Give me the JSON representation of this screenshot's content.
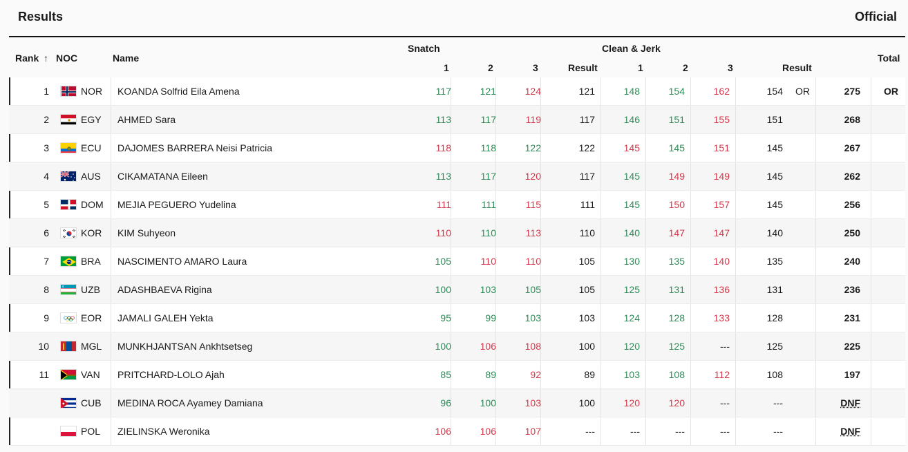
{
  "header": {
    "title": "Results",
    "status": "Official"
  },
  "columns": {
    "rank": "Rank",
    "sort_icon": "↑",
    "noc": "NOC",
    "name": "Name",
    "snatch": "Snatch",
    "cj": "Clean & Jerk",
    "a1": "1",
    "a2": "2",
    "a3": "3",
    "result": "Result",
    "total": "Total"
  },
  "colors": {
    "good": "#2e8b57",
    "bad": "#d2384b"
  },
  "rows": [
    {
      "rank": "1",
      "noc": "NOR",
      "flag": "flag-nor",
      "name": "KOANDA Solfrid Eila Amena",
      "s": [
        [
          "117",
          "good"
        ],
        [
          "121",
          "good"
        ],
        [
          "124",
          "bad"
        ]
      ],
      "sr": "121",
      "c": [
        [
          "148",
          "good"
        ],
        [
          "154",
          "good"
        ],
        [
          "162",
          "bad"
        ]
      ],
      "cr": "154",
      "cr_note": "OR",
      "total": "275",
      "total_note": "OR"
    },
    {
      "rank": "2",
      "noc": "EGY",
      "flag": "flag-egy",
      "name": "AHMED Sara",
      "s": [
        [
          "113",
          "good"
        ],
        [
          "117",
          "good"
        ],
        [
          "119",
          "bad"
        ]
      ],
      "sr": "117",
      "c": [
        [
          "146",
          "good"
        ],
        [
          "151",
          "good"
        ],
        [
          "155",
          "bad"
        ]
      ],
      "cr": "151",
      "cr_note": "",
      "total": "268",
      "total_note": ""
    },
    {
      "rank": "3",
      "noc": "ECU",
      "flag": "flag-ecu",
      "name": "DAJOMES BARRERA Neisi Patricia",
      "s": [
        [
          "118",
          "bad"
        ],
        [
          "118",
          "good"
        ],
        [
          "122",
          "good"
        ]
      ],
      "sr": "122",
      "c": [
        [
          "145",
          "bad"
        ],
        [
          "145",
          "good"
        ],
        [
          "151",
          "bad"
        ]
      ],
      "cr": "145",
      "cr_note": "",
      "total": "267",
      "total_note": ""
    },
    {
      "rank": "4",
      "noc": "AUS",
      "flag": "flag-aus",
      "name": "CIKAMATANA Eileen",
      "s": [
        [
          "113",
          "good"
        ],
        [
          "117",
          "good"
        ],
        [
          "120",
          "bad"
        ]
      ],
      "sr": "117",
      "c": [
        [
          "145",
          "good"
        ],
        [
          "149",
          "bad"
        ],
        [
          "149",
          "bad"
        ]
      ],
      "cr": "145",
      "cr_note": "",
      "total": "262",
      "total_note": ""
    },
    {
      "rank": "5",
      "noc": "DOM",
      "flag": "flag-dom",
      "name": "MEJIA PEGUERO Yudelina",
      "s": [
        [
          "111",
          "bad"
        ],
        [
          "111",
          "good"
        ],
        [
          "115",
          "bad"
        ]
      ],
      "sr": "111",
      "c": [
        [
          "145",
          "good"
        ],
        [
          "150",
          "bad"
        ],
        [
          "157",
          "bad"
        ]
      ],
      "cr": "145",
      "cr_note": "",
      "total": "256",
      "total_note": ""
    },
    {
      "rank": "6",
      "noc": "KOR",
      "flag": "flag-kor",
      "name": "KIM Suhyeon",
      "s": [
        [
          "110",
          "bad"
        ],
        [
          "110",
          "good"
        ],
        [
          "113",
          "bad"
        ]
      ],
      "sr": "110",
      "c": [
        [
          "140",
          "good"
        ],
        [
          "147",
          "bad"
        ],
        [
          "147",
          "bad"
        ]
      ],
      "cr": "140",
      "cr_note": "",
      "total": "250",
      "total_note": ""
    },
    {
      "rank": "7",
      "noc": "BRA",
      "flag": "flag-bra",
      "name": "NASCIMENTO AMARO Laura",
      "s": [
        [
          "105",
          "good"
        ],
        [
          "110",
          "bad"
        ],
        [
          "110",
          "bad"
        ]
      ],
      "sr": "105",
      "c": [
        [
          "130",
          "good"
        ],
        [
          "135",
          "good"
        ],
        [
          "140",
          "bad"
        ]
      ],
      "cr": "135",
      "cr_note": "",
      "total": "240",
      "total_note": ""
    },
    {
      "rank": "8",
      "noc": "UZB",
      "flag": "flag-uzb",
      "name": "ADASHBAEVA Rigina",
      "s": [
        [
          "100",
          "good"
        ],
        [
          "103",
          "good"
        ],
        [
          "105",
          "good"
        ]
      ],
      "sr": "105",
      "c": [
        [
          "125",
          "good"
        ],
        [
          "131",
          "good"
        ],
        [
          "136",
          "bad"
        ]
      ],
      "cr": "131",
      "cr_note": "",
      "total": "236",
      "total_note": ""
    },
    {
      "rank": "9",
      "noc": "EOR",
      "flag": "flag-eor",
      "name": "JAMALI GALEH Yekta",
      "s": [
        [
          "95",
          "good"
        ],
        [
          "99",
          "good"
        ],
        [
          "103",
          "good"
        ]
      ],
      "sr": "103",
      "c": [
        [
          "124",
          "good"
        ],
        [
          "128",
          "good"
        ],
        [
          "133",
          "bad"
        ]
      ],
      "cr": "128",
      "cr_note": "",
      "total": "231",
      "total_note": ""
    },
    {
      "rank": "10",
      "noc": "MGL",
      "flag": "flag-mgl",
      "name": "MUNKHJANTSAN Ankhtsetseg",
      "s": [
        [
          "100",
          "good"
        ],
        [
          "106",
          "bad"
        ],
        [
          "108",
          "bad"
        ]
      ],
      "sr": "100",
      "c": [
        [
          "120",
          "good"
        ],
        [
          "125",
          "good"
        ],
        [
          "---",
          "neutral"
        ]
      ],
      "cr": "125",
      "cr_note": "",
      "total": "225",
      "total_note": ""
    },
    {
      "rank": "11",
      "noc": "VAN",
      "flag": "flag-van",
      "name": "PRITCHARD-LOLO Ajah",
      "s": [
        [
          "85",
          "good"
        ],
        [
          "89",
          "good"
        ],
        [
          "92",
          "bad"
        ]
      ],
      "sr": "89",
      "c": [
        [
          "103",
          "good"
        ],
        [
          "108",
          "good"
        ],
        [
          "112",
          "bad"
        ]
      ],
      "cr": "108",
      "cr_note": "",
      "total": "197",
      "total_note": ""
    },
    {
      "rank": "",
      "noc": "CUB",
      "flag": "flag-cub",
      "name": "MEDINA ROCA Ayamey Damiana",
      "s": [
        [
          "96",
          "good"
        ],
        [
          "100",
          "good"
        ],
        [
          "103",
          "bad"
        ]
      ],
      "sr": "100",
      "c": [
        [
          "120",
          "bad"
        ],
        [
          "120",
          "bad"
        ],
        [
          "---",
          "neutral"
        ]
      ],
      "cr": "---",
      "cr_note": "",
      "total": "DNF",
      "total_note": ""
    },
    {
      "rank": "",
      "noc": "POL",
      "flag": "flag-pol",
      "name": "ZIELINSKA Weronika",
      "s": [
        [
          "106",
          "bad"
        ],
        [
          "106",
          "bad"
        ],
        [
          "107",
          "bad"
        ]
      ],
      "sr": "---",
      "c": [
        [
          "---",
          "neutral"
        ],
        [
          "---",
          "neutral"
        ],
        [
          "---",
          "neutral"
        ]
      ],
      "cr": "---",
      "cr_note": "",
      "total": "DNF",
      "total_note": ""
    }
  ]
}
